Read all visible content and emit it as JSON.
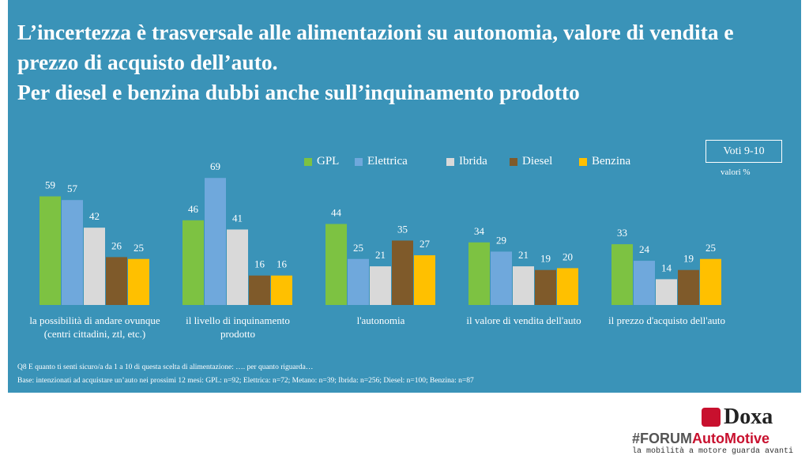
{
  "chart_data": {
    "type": "bar",
    "title": "L’incertezza è trasversale alle alimentazioni su autonomia, valore di vendita e prezzo di acquisto dell’auto.",
    "subtitle": "Per diesel e benzina dubbi anche sull’inquinamento prodotto",
    "annotation": "Voti 9-10",
    "unit_note": "valori %",
    "categories": [
      "la possibilità di andare ovunque (centri cittadini, ztl, etc.)",
      "il livello di inquinamento prodotto",
      "l'autonomia",
      "il valore di vendita dell'auto",
      "il prezzo d'acquisto dell'auto"
    ],
    "series": [
      {
        "name": "GPL",
        "color": "#7dc242",
        "values": [
          59,
          46,
          44,
          34,
          33
        ]
      },
      {
        "name": "Elettrica",
        "color": "#6fa8dc",
        "values": [
          57,
          69,
          25,
          29,
          24
        ]
      },
      {
        "name": "Ibrida",
        "color": "#d9d9d9",
        "values": [
          42,
          41,
          21,
          21,
          14
        ]
      },
      {
        "name": "Diesel",
        "color": "#7f5a2a",
        "values": [
          26,
          16,
          35,
          19,
          19
        ]
      },
      {
        "name": "Benzina",
        "color": "#ffc000",
        "values": [
          25,
          16,
          27,
          20,
          25
        ]
      }
    ],
    "notes": [
      "Q8 E quanto ti senti sicuro/a da 1 a 10 di questa scelta di alimentazione: …. per quanto riguarda…",
      "Base: intenzionati ad acquistare un’auto nei prossimi 12 mesi: GPL: n=92; Elettrica: n=72; Metano: n=39; Ibrida: n=256; Diesel: n=100; Benzina: n=87"
    ]
  },
  "branding": {
    "company": "Doxa",
    "event_prefix": "#FORUM",
    "event_name": "AutoMotive",
    "tagline": "la mobilità a motore guarda avanti"
  }
}
